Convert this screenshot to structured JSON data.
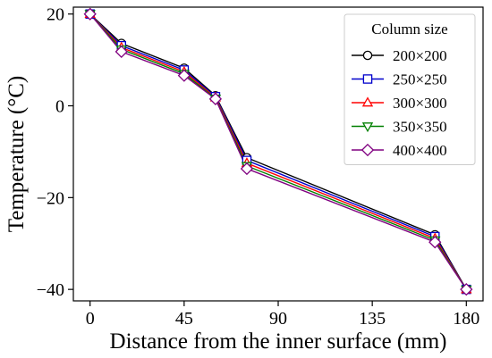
{
  "chart_data": {
    "type": "line",
    "xlabel": "Distance from the inner surface (mm)",
    "ylabel": "Temperature (°C)",
    "xlim": [
      -8,
      188
    ],
    "ylim": [
      -42.5,
      21.5
    ],
    "xticks": [
      0,
      45,
      90,
      135,
      180
    ],
    "yticks": [
      20,
      0,
      -20,
      -40
    ],
    "ytick_labels": [
      "20",
      "0",
      "−20",
      "−40"
    ],
    "x": [
      0,
      15,
      45,
      60,
      75,
      165,
      180
    ],
    "legend": {
      "title": "Column size",
      "placement": "top-right"
    },
    "series": [
      {
        "name": "200×200",
        "color": "#000000",
        "marker": "circle",
        "values": [
          20,
          13.6,
          8.2,
          2.2,
          -11.3,
          -28.1,
          -40
        ]
      },
      {
        "name": "250×250",
        "color": "#0000cc",
        "marker": "square",
        "values": [
          20,
          13.1,
          7.8,
          2.0,
          -11.9,
          -28.5,
          -40
        ]
      },
      {
        "name": "300×300",
        "color": "#ff0000",
        "marker": "triangle-up",
        "values": [
          20,
          12.7,
          7.4,
          1.8,
          -12.5,
          -28.9,
          -40
        ]
      },
      {
        "name": "350×350",
        "color": "#008000",
        "marker": "triangle-down",
        "values": [
          20,
          12.3,
          7.0,
          1.6,
          -13.1,
          -29.3,
          -40
        ]
      },
      {
        "name": "400×400",
        "color": "#800080",
        "marker": "diamond",
        "values": [
          20,
          11.8,
          6.6,
          1.5,
          -13.7,
          -29.7,
          -40
        ]
      }
    ]
  }
}
